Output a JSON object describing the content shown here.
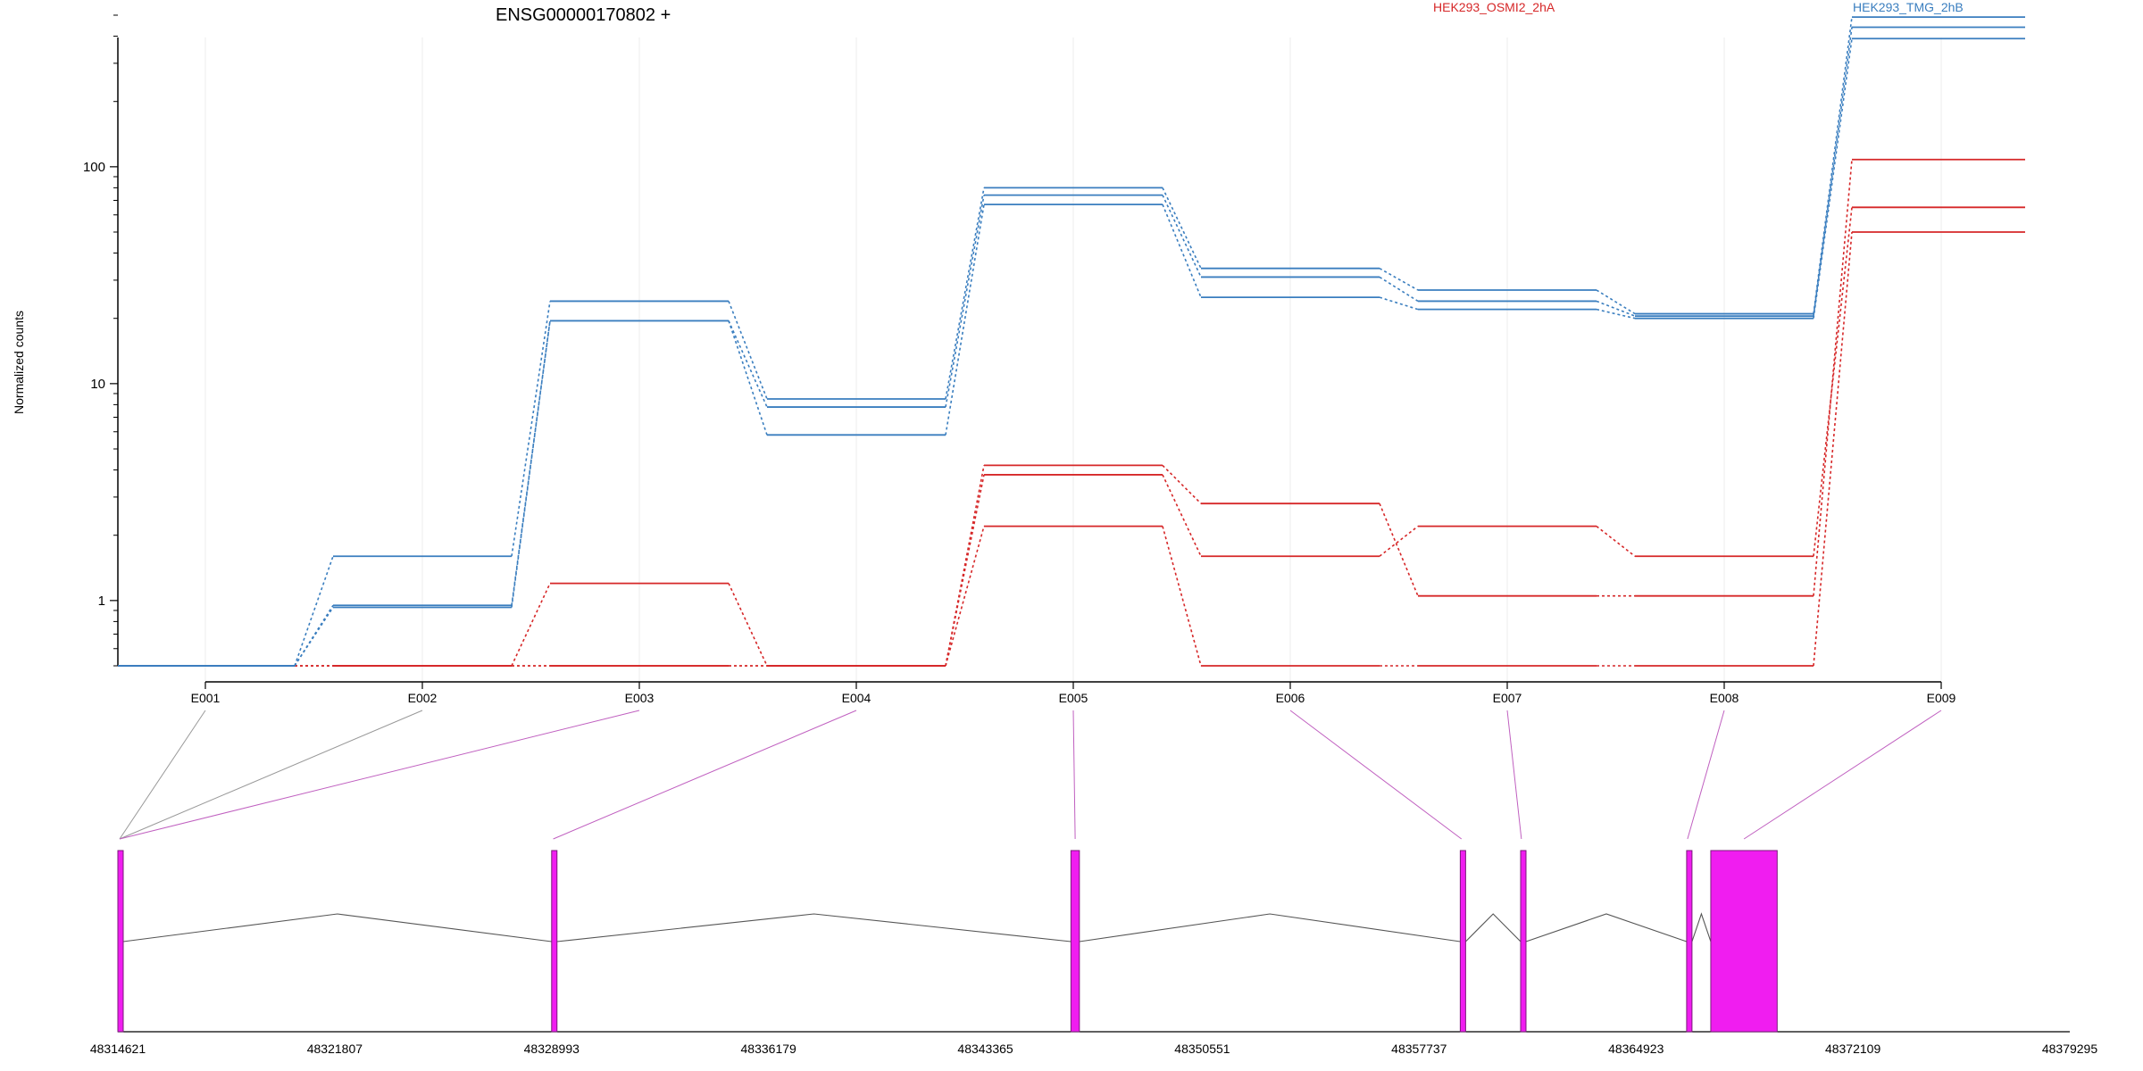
{
  "chart_data": {
    "type": "line",
    "title": "ENSG00000170802 +",
    "ylabel": "Normalized counts",
    "yscale": "log",
    "ylim": [
      0.5,
      700
    ],
    "yticks": [
      "1",
      "10",
      "100"
    ],
    "yticks_values": [
      1,
      10,
      100
    ],
    "x": [
      "E001",
      "E002",
      "E003",
      "E004",
      "E005",
      "E006",
      "E007",
      "E008",
      "E009"
    ],
    "grid": true,
    "legend_position": "top-right",
    "colors": {
      "osmi": "#d62728",
      "tmg": "#3a7ebf",
      "exon": "#f01df0",
      "exon_border": "#7a1a7a",
      "intron": "#555555",
      "connector": "#c060c0"
    },
    "series": [
      {
        "name": "HEK293_OSMI2_2hA",
        "group": "osmi",
        "values": [
          0.5,
          0.5,
          1.2,
          0.5,
          4.2,
          2.8,
          1.05,
          1.05,
          108
        ]
      },
      {
        "group": "osmi",
        "values": [
          0.5,
          0.5,
          0.5,
          0.5,
          3.8,
          1.6,
          2.2,
          1.6,
          65
        ]
      },
      {
        "group": "osmi",
        "values": [
          0.5,
          0.5,
          0.5,
          0.5,
          2.2,
          0.5,
          0.5,
          0.5,
          50
        ]
      },
      {
        "name": "HEK293_TMG_2hB",
        "group": "tmg",
        "values": [
          0.5,
          1.6,
          24,
          8.5,
          80,
          34,
          27,
          21,
          490
        ]
      },
      {
        "group": "tmg",
        "values": [
          0.5,
          0.95,
          19.5,
          7.8,
          74,
          31,
          24,
          20.5,
          440
        ]
      },
      {
        "group": "tmg",
        "values": [
          0.5,
          0.93,
          19.5,
          5.8,
          67,
          25,
          22,
          20,
          390
        ]
      }
    ],
    "gene_model": {
      "coord_ticks": [
        "48314621",
        "48321807",
        "48328993",
        "48336179",
        "48343365",
        "48350551",
        "48357737",
        "48364923",
        "48372109",
        "48379295"
      ],
      "coord_tick_values": [
        48314621,
        48321807,
        48328993,
        48336179,
        48343365,
        48350551,
        48357737,
        48364923,
        48372109,
        48379295
      ],
      "exons": [
        {
          "id": "E001",
          "start": 48314621,
          "end": 48314660
        },
        {
          "id": "E002",
          "start": 48314660,
          "end": 48314700
        },
        {
          "id": "E003",
          "start": 48314700,
          "end": 48314730
        },
        {
          "id": "E004",
          "start": 48328993,
          "end": 48329100
        },
        {
          "id": "E005",
          "start": 48346200,
          "end": 48346480
        },
        {
          "id": "E006",
          "start": 48359100,
          "end": 48359180
        },
        {
          "id": "E007",
          "start": 48361100,
          "end": 48361150
        },
        {
          "id": "E008",
          "start": 48366600,
          "end": 48366660
        },
        {
          "id": "E009",
          "start": 48367400,
          "end": 48369600
        }
      ]
    }
  }
}
